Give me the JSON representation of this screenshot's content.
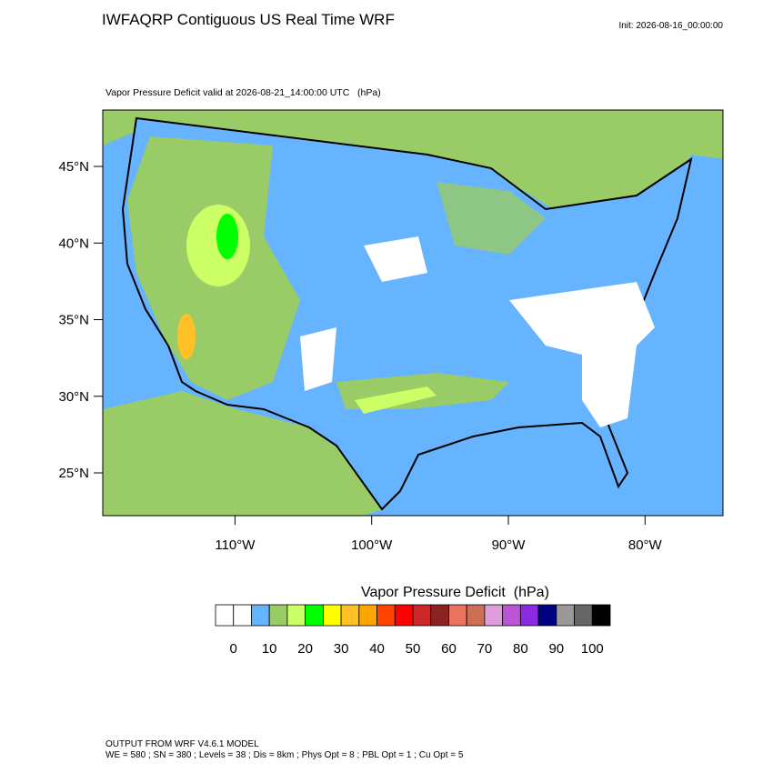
{
  "header": {
    "title": "IWFAQRP Contiguous US Real Time WRF",
    "init": "Init: 2026-08-16_00:00:00"
  },
  "map": {
    "subtitle": "Vapor Pressure Deficit valid at 2026-08-21_14:00:00 UTC   (hPa)",
    "lat_labels": [
      {
        "value": 45,
        "label": "45°N"
      },
      {
        "value": 40,
        "label": "40°N"
      },
      {
        "value": 35,
        "label": "35°N"
      },
      {
        "value": 30,
        "label": "30°N"
      },
      {
        "value": 25,
        "label": "25°N"
      }
    ],
    "lon_labels": [
      {
        "value": -110,
        "label": "110°W"
      },
      {
        "value": -100,
        "label": "100°W"
      },
      {
        "value": -90,
        "label": "90°W"
      },
      {
        "value": -80,
        "label": "80°W"
      }
    ]
  },
  "colorbar": {
    "title": "Vapor Pressure Deficit  (hPa)",
    "colors": [
      "#ffffff",
      "#ffffff",
      "#66b3ff",
      "#99cc66",
      "#ccff66",
      "#00ff00",
      "#ffff00",
      "#ffc125",
      "#ffa500",
      "#ff4500",
      "#ff0000",
      "#cd2626",
      "#8b2323",
      "#e9735f",
      "#cd6f55",
      "#dda0dd",
      "#ba55d3",
      "#8a2be2",
      "#000080",
      "#999999",
      "#666666",
      "#000000"
    ],
    "ticks": [
      0,
      10,
      20,
      30,
      40,
      50,
      60,
      70,
      80,
      90,
      100
    ]
  },
  "footer": {
    "line1": "OUTPUT FROM WRF V4.6.1 MODEL",
    "line2": "WE = 580 ; SN = 380 ; Levels = 38 ; Dis = 8km ; Phys Opt = 8 ; PBL Opt = 1 ; Cu Opt = 5"
  }
}
